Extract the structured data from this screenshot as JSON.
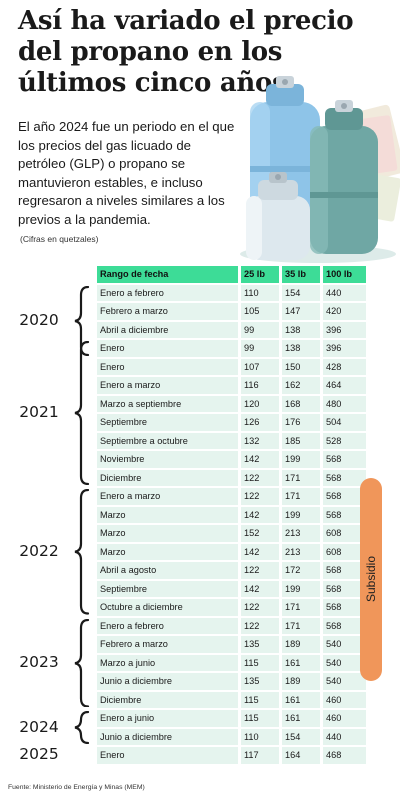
{
  "header": {
    "title": "Así ha variado el precio del propano en los últimos cinco años",
    "intro": "El año 2024 fue un periodo en el que los precios del gas licuado de petróleo (GLP) o propano se mantuvieron estables, e incluso regresaron a niveles similares a los previos a la pandemia.",
    "units_note": "(Cifras en quetzales)"
  },
  "chart_data": {
    "type": "table",
    "columns": [
      "Rango de fecha",
      "25 lb",
      "35 lb",
      "100 lb"
    ],
    "rows": [
      {
        "range": "Enero a febrero",
        "v25": 110,
        "v35": 154,
        "v100": 440
      },
      {
        "range": "Febrero a marzo",
        "v25": 105,
        "v35": 147,
        "v100": 420
      },
      {
        "range": "Abril a diciembre",
        "v25": 99,
        "v35": 138,
        "v100": 396
      },
      {
        "range": "Enero",
        "v25": 99,
        "v35": 138,
        "v100": 396
      },
      {
        "range": "Enero",
        "v25": 107,
        "v35": 150,
        "v100": 428
      },
      {
        "range": "Enero a marzo",
        "v25": 116,
        "v35": 162,
        "v100": 464
      },
      {
        "range": "Marzo a septiembre",
        "v25": 120,
        "v35": 168,
        "v100": 480
      },
      {
        "range": "Septiembre",
        "v25": 126,
        "v35": 176,
        "v100": 504
      },
      {
        "range": "Septiembre  a octubre",
        "v25": 132,
        "v35": 185,
        "v100": 528
      },
      {
        "range": "Noviembre",
        "v25": 142,
        "v35": 199,
        "v100": 568
      },
      {
        "range": "Diciembre",
        "v25": 122,
        "v35": 171,
        "v100": 568
      },
      {
        "range": "Enero a marzo",
        "v25": 122,
        "v35": 171,
        "v100": 568
      },
      {
        "range": "Marzo",
        "v25": 142,
        "v35": 199,
        "v100": 568
      },
      {
        "range": "Marzo",
        "v25": 152,
        "v35": 213,
        "v100": 608
      },
      {
        "range": "Marzo",
        "v25": 142,
        "v35": 213,
        "v100": 608
      },
      {
        "range": "Abril a agosto",
        "v25": 122,
        "v35": 172,
        "v100": 568
      },
      {
        "range": "Septiembre",
        "v25": 142,
        "v35": 199,
        "v100": 568
      },
      {
        "range": "Octubre a diciembre",
        "v25": 122,
        "v35": 171,
        "v100": 568
      },
      {
        "range": "Enero a febrero",
        "v25": 122,
        "v35": 171,
        "v100": 568
      },
      {
        "range": "Febrero a marzo",
        "v25": 135,
        "v35": 189,
        "v100": 540
      },
      {
        "range": "Marzo a junio",
        "v25": 115,
        "v35": 161,
        "v100": 540
      },
      {
        "range": "Junio a diciembre",
        "v25": 135,
        "v35": 189,
        "v100": 540
      },
      {
        "range": "Diciembre",
        "v25": 115,
        "v35": 161,
        "v100": 460
      },
      {
        "range": "Enero a junio",
        "v25": 115,
        "v35": 161,
        "v100": 460
      },
      {
        "range": "Junio a diciembre",
        "v25": 110,
        "v35": 154,
        "v100": 440
      },
      {
        "range": "Enero",
        "v25": 117,
        "v35": 164,
        "v100": 468
      }
    ],
    "year_groups": [
      {
        "label": "2020",
        "first_row": 0,
        "last_row": 3
      },
      {
        "label": "2021",
        "first_row": 3,
        "last_row": 10
      },
      {
        "label": "2022",
        "first_row": 11,
        "last_row": 17
      },
      {
        "label": "2023",
        "first_row": 18,
        "last_row": 22
      },
      {
        "label": "2024",
        "first_row": 23,
        "last_row": 24
      },
      {
        "label": "2025",
        "first_row": 25,
        "last_row": 25
      }
    ],
    "subsidy": {
      "label": "Subsidio",
      "first_row": 10,
      "last_row": 20
    }
  },
  "footer": {
    "source": "Fuente: Ministerio de Energía y Minas (MEM)"
  },
  "colors": {
    "header_bg": "#3ddc97",
    "row_bg": "#e5f4ee",
    "subsidy_bg": "#f0965a",
    "tank_blue": "#8ec4e8",
    "tank_teal": "#6fa7a4",
    "tank_white": "#dde8ee"
  },
  "icons": [
    "propane-tank-illustration",
    "curly-brace-icon"
  ]
}
